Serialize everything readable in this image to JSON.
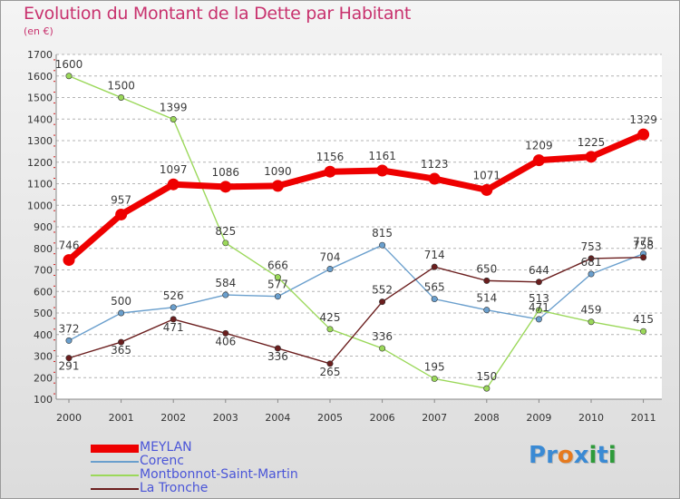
{
  "title": "Evolution du Montant de la Dette par Habitant",
  "subtitle": "(en €)",
  "logo": "Proxiti",
  "colors": {
    "title": "#c8326e",
    "legend_text": "#4a55d8",
    "axis_text": "#333333",
    "grid": "#b4b4b4",
    "logo_letters": [
      "#3a8ad4",
      "#3a8ad4",
      "#e67a1e",
      "#3a8ad4",
      "#2e9b3a",
      "#3a8ad4",
      "#2e9b3a"
    ]
  },
  "chart_data": {
    "type": "line",
    "title": "Evolution du Montant de la Dette par Habitant",
    "subtitle": "(en €)",
    "xlabel": "",
    "ylabel": "",
    "x": [
      "2000",
      "2001",
      "2002",
      "2003",
      "2004",
      "2005",
      "2006",
      "2007",
      "2008",
      "2009",
      "2010",
      "2011"
    ],
    "ylim": [
      100,
      1700
    ],
    "yticks": [
      100,
      200,
      300,
      400,
      500,
      600,
      700,
      800,
      900,
      1000,
      1100,
      1200,
      1300,
      1400,
      1500,
      1600,
      1700
    ],
    "grid": "horizontal dashed",
    "legend_position": "bottom-left",
    "series": [
      {
        "name": "MEYLAN",
        "color": "#ee0000",
        "values": [
          746,
          957,
          1097,
          1086,
          1090,
          1156,
          1161,
          1123,
          1071,
          1209,
          1225,
          1329
        ],
        "emphasis": true
      },
      {
        "name": "Corenc",
        "color": "#6a9fcd",
        "values": [
          372,
          500,
          526,
          584,
          577,
          704,
          815,
          565,
          514,
          471,
          681,
          775
        ]
      },
      {
        "name": "Montbonnot-Saint-Martin",
        "color": "#9bd85a",
        "values": [
          1600,
          1500,
          1399,
          825,
          666,
          425,
          336,
          195,
          150,
          513,
          459,
          415
        ]
      },
      {
        "name": "La Tronche",
        "color": "#6b1e1e",
        "values": [
          291,
          365,
          471,
          406,
          336,
          265,
          552,
          714,
          650,
          644,
          753,
          758
        ]
      }
    ]
  }
}
